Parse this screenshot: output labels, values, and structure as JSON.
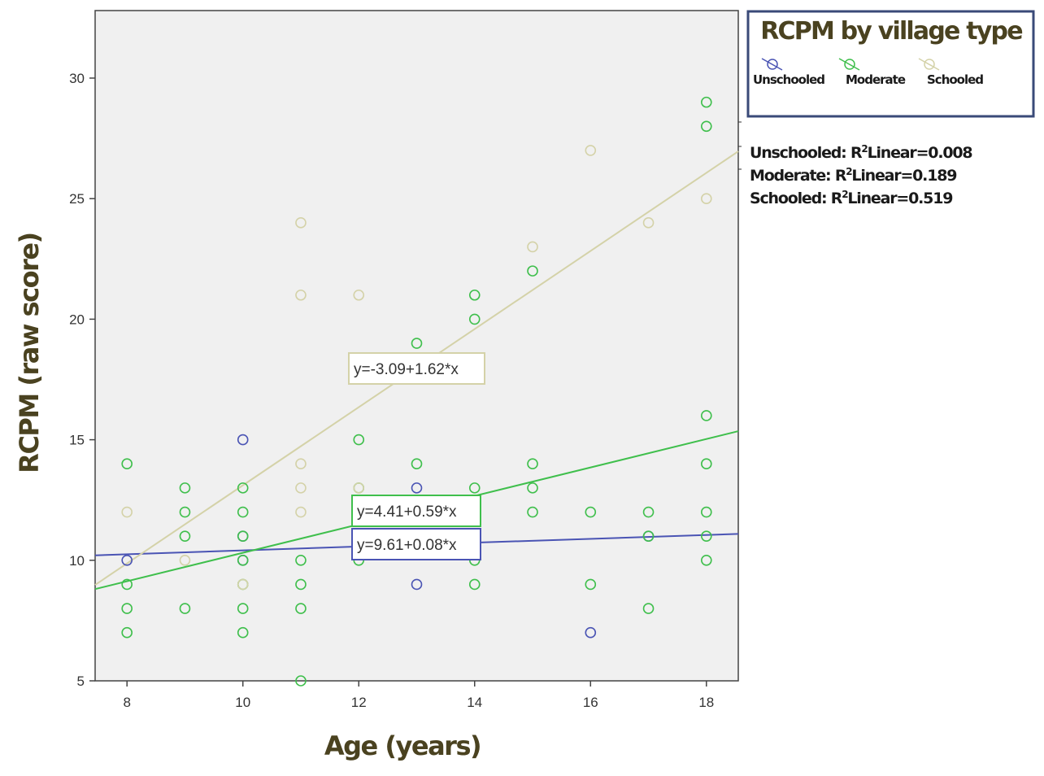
{
  "chart_data": {
    "type": "scatter",
    "xlabel": "Age (years)",
    "ylabel": "RCPM (raw score)",
    "xlim": [
      7.45,
      18.55
    ],
    "ylim": [
      5,
      32.8
    ],
    "xticks": [
      8,
      10,
      12,
      14,
      16,
      18
    ],
    "yticks": [
      5,
      10,
      15,
      20,
      25,
      30
    ],
    "grid": false,
    "legend": {
      "title": "RCPM by village type",
      "placement": "top-right",
      "entries": [
        "Unschooled",
        "Moderate",
        "Schooled"
      ]
    },
    "r2_labels": [
      {
        "prefix": "Unschooled: R",
        "suffix": "Linear=0.008"
      },
      {
        "prefix": "Moderate: R",
        "suffix": "Linear=0.189"
      },
      {
        "prefix": "Schooled: R",
        "suffix": "Linear=0.519"
      }
    ],
    "series": [
      {
        "name": "Unschooled",
        "color": "#4a54b4",
        "fit": {
          "intercept": 9.61,
          "slope": 0.08,
          "r2": 0.008,
          "label": "y=9.61+0.08*x"
        },
        "points": [
          [
            8,
            10
          ],
          [
            10,
            15
          ],
          [
            10,
            11
          ],
          [
            10,
            10
          ],
          [
            13,
            13
          ],
          [
            13,
            9
          ],
          [
            16,
            7
          ],
          [
            17,
            11
          ]
        ]
      },
      {
        "name": "Moderate",
        "color": "#3fbf4c",
        "fit": {
          "intercept": 4.41,
          "slope": 0.59,
          "r2": 0.189,
          "label": "y=4.41+0.59*x"
        },
        "points": [
          [
            8,
            14
          ],
          [
            8,
            9
          ],
          [
            8,
            8
          ],
          [
            8,
            7
          ],
          [
            9,
            13
          ],
          [
            9,
            12
          ],
          [
            9,
            11
          ],
          [
            9,
            8
          ],
          [
            10,
            13
          ],
          [
            10,
            12
          ],
          [
            10,
            11
          ],
          [
            10,
            10
          ],
          [
            10,
            9
          ],
          [
            10,
            8
          ],
          [
            10,
            7
          ],
          [
            11,
            10
          ],
          [
            11,
            9
          ],
          [
            11,
            8
          ],
          [
            11,
            5
          ],
          [
            12,
            15
          ],
          [
            12,
            13
          ],
          [
            12,
            10
          ],
          [
            13,
            19
          ],
          [
            13,
            14
          ],
          [
            14,
            21
          ],
          [
            14,
            20
          ],
          [
            14,
            13
          ],
          [
            14,
            10
          ],
          [
            14,
            9
          ],
          [
            15,
            22
          ],
          [
            15,
            14
          ],
          [
            15,
            13
          ],
          [
            15,
            12
          ],
          [
            16,
            12
          ],
          [
            16,
            9
          ],
          [
            17,
            12
          ],
          [
            17,
            11
          ],
          [
            17,
            8
          ],
          [
            18,
            29
          ],
          [
            18,
            28
          ],
          [
            18,
            16
          ],
          [
            18,
            14
          ],
          [
            18,
            12
          ],
          [
            18,
            11
          ],
          [
            18,
            10
          ]
        ]
      },
      {
        "name": "Schooled",
        "color": "#d4d2a8",
        "fit": {
          "intercept": -3.09,
          "slope": 1.62,
          "r2": 0.519,
          "label": "y=-3.09+1.62*x"
        },
        "points": [
          [
            8,
            12
          ],
          [
            9,
            10
          ],
          [
            10,
            9
          ],
          [
            11,
            24
          ],
          [
            11,
            21
          ],
          [
            11,
            14
          ],
          [
            11,
            13
          ],
          [
            11,
            12
          ],
          [
            12,
            21
          ],
          [
            12,
            13
          ],
          [
            15,
            23
          ],
          [
            16,
            27
          ],
          [
            17,
            24
          ],
          [
            18,
            25
          ]
        ]
      }
    ]
  }
}
